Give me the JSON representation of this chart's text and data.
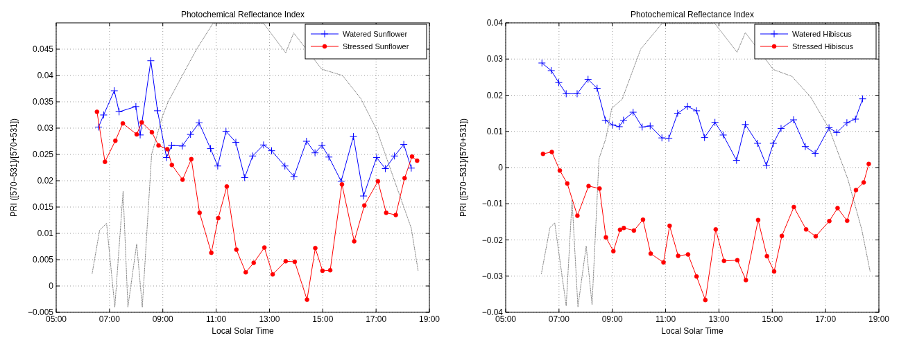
{
  "chart_data": [
    {
      "type": "line",
      "title": "Photochemical Reflectance Index",
      "xlabel": "Local Solar Time",
      "ylabel": "PRI ([570−531]/[570+531])",
      "xlim": [
        5,
        19
      ],
      "xticks": [
        {
          "value": 5,
          "label": "05:00"
        },
        {
          "value": 7,
          "label": "07:00"
        },
        {
          "value": 9,
          "label": "09:00"
        },
        {
          "value": 11,
          "label": "11:00"
        },
        {
          "value": 13,
          "label": "13:00"
        },
        {
          "value": 15,
          "label": "15:00"
        },
        {
          "value": 17,
          "label": "17:00"
        },
        {
          "value": 19,
          "label": "19:00"
        }
      ],
      "ylim": [
        -0.005,
        0.05
      ],
      "yticks": [
        -0.005,
        0,
        0.005,
        0.01,
        0.015,
        0.02,
        0.025,
        0.03,
        0.035,
        0.04,
        0.045
      ],
      "grid": true,
      "legend": "top right",
      "series": [
        {
          "color": "#808080",
          "line_style": "dotted",
          "marker": "none",
          "x": [
            6.35,
            6.63,
            6.89,
            7.2,
            7.51,
            7.69,
            8.02,
            8.23,
            8.58,
            8.97,
            9.2,
            9.84,
            10.27,
            10.88,
            12.78,
            13.61,
            13.91,
            14.96,
            15.74,
            16.43,
            17.03,
            17.72,
            18.32,
            18.58
          ],
          "values": [
            0.0024,
            0.0106,
            0.0119,
            -0.004,
            0.018,
            -0.004,
            0.008,
            -0.004,
            0.025,
            0.032,
            0.035,
            0.041,
            0.045,
            0.0499,
            0.0499,
            0.0443,
            0.0481,
            0.0412,
            0.04,
            0.0356,
            0.0296,
            0.0196,
            0.011,
            0.0028
          ]
        },
        {
          "name": "Watered Sunflower",
          "color": "#0000ff",
          "line_style": "solid",
          "marker": "cross",
          "x": [
            6.59,
            6.78,
            7.18,
            7.36,
            7.99,
            8.15,
            8.55,
            8.8,
            9.14,
            9.33,
            9.73,
            10.04,
            10.36,
            10.79,
            11.06,
            11.37,
            11.74,
            12.07,
            12.37,
            12.78,
            13.08,
            13.58,
            13.92,
            14.39,
            14.71,
            14.97,
            15.23,
            15.69,
            16.15,
            16.53,
            17.02,
            17.35,
            17.69,
            18.04,
            18.32
          ],
          "values": [
            0.0302,
            0.0325,
            0.0371,
            0.0331,
            0.0341,
            0.0287,
            0.0428,
            0.0333,
            0.0244,
            0.0267,
            0.0266,
            0.0288,
            0.031,
            0.0261,
            0.0228,
            0.0294,
            0.0273,
            0.0206,
            0.0247,
            0.0268,
            0.0257,
            0.0228,
            0.0208,
            0.0275,
            0.0253,
            0.0267,
            0.0245,
            0.0199,
            0.0284,
            0.0171,
            0.0244,
            0.0223,
            0.0247,
            0.0269,
            0.0224
          ]
        },
        {
          "name": "Stressed Sunflower",
          "color": "#ff0000",
          "line_style": "solid",
          "marker": "circle",
          "x": [
            6.53,
            6.83,
            7.22,
            7.5,
            8.02,
            8.21,
            8.59,
            8.84,
            9.17,
            9.34,
            9.74,
            10.07,
            10.38,
            10.82,
            11.08,
            11.4,
            11.76,
            12.11,
            12.41,
            12.81,
            13.12,
            13.61,
            13.95,
            14.41,
            14.72,
            14.99,
            15.28,
            15.72,
            16.18,
            16.56,
            17.07,
            17.38,
            17.74,
            18.07,
            18.35,
            18.54
          ],
          "values": [
            0.0331,
            0.0236,
            0.0276,
            0.0309,
            0.0288,
            0.0311,
            0.0292,
            0.0267,
            0.026,
            0.023,
            0.0202,
            0.0241,
            0.0139,
            0.0063,
            0.0129,
            0.0189,
            0.0069,
            0.0026,
            0.0044,
            0.0073,
            0.0022,
            0.0047,
            0.0046,
            -0.0026,
            0.0072,
            0.0029,
            0.003,
            0.0193,
            0.0085,
            0.0153,
            0.0199,
            0.0139,
            0.0135,
            0.0205,
            0.0246,
            0.0238
          ]
        }
      ]
    },
    {
      "type": "line",
      "title": "Photochemical Reflectance Index",
      "xlabel": "Local Solar Time",
      "ylabel": "PRI ([570−531]/[570+531])",
      "xlim": [
        5,
        19
      ],
      "xticks": [
        {
          "value": 5,
          "label": "05:00"
        },
        {
          "value": 7,
          "label": "07:00"
        },
        {
          "value": 9,
          "label": "09:00"
        },
        {
          "value": 11,
          "label": "11:00"
        },
        {
          "value": 13,
          "label": "13:00"
        },
        {
          "value": 15,
          "label": "15:00"
        },
        {
          "value": 17,
          "label": "17:00"
        },
        {
          "value": 19,
          "label": "19:00"
        }
      ],
      "ylim": [
        -0.04,
        0.04
      ],
      "yticks": [
        -0.04,
        -0.03,
        -0.02,
        -0.01,
        0,
        0.01,
        0.02,
        0.03,
        0.04
      ],
      "grid": true,
      "legend": "top right",
      "series": [
        {
          "color": "#808080",
          "line_style": "dotted",
          "marker": "none",
          "x": [
            6.34,
            6.66,
            6.84,
            7.27,
            7.49,
            7.71,
            8.02,
            8.24,
            8.5,
            8.76,
            8.98,
            9.37,
            9.72,
            10.07,
            10.86,
            12.85,
            13.68,
            13.99,
            15.04,
            15.74,
            16.44,
            17.14,
            17.84,
            18.36,
            18.67
          ],
          "values": [
            -0.0293,
            -0.0166,
            -0.0153,
            -0.0382,
            -0.009,
            -0.0385,
            -0.0217,
            -0.0379,
            0.0024,
            0.0081,
            0.0164,
            0.0189,
            0.0259,
            0.0328,
            0.0398,
            0.0398,
            0.0319,
            0.0373,
            0.0271,
            0.0252,
            0.0195,
            0.0107,
            -0.0033,
            -0.0172,
            -0.0287
          ]
        },
        {
          "name": "Watered Hibiscus",
          "color": "#0000ff",
          "line_style": "solid",
          "marker": "cross",
          "x": [
            6.36,
            6.71,
            6.99,
            7.27,
            7.68,
            8.09,
            8.43,
            8.74,
            9.01,
            9.26,
            9.42,
            9.78,
            10.12,
            10.42,
            10.86,
            11.12,
            11.45,
            11.82,
            12.16,
            12.46,
            12.85,
            13.16,
            13.66,
            13.99,
            14.45,
            14.78,
            15.04,
            15.33,
            15.8,
            16.24,
            16.61,
            17.13,
            17.42,
            17.8,
            18.12,
            18.39
          ],
          "values": [
            0.0289,
            0.0268,
            0.0235,
            0.0204,
            0.0204,
            0.0244,
            0.0219,
            0.0131,
            0.0118,
            0.0113,
            0.0131,
            0.0153,
            0.0112,
            0.0115,
            0.0082,
            0.0081,
            0.015,
            0.0169,
            0.0157,
            0.0083,
            0.0125,
            0.009,
            0.002,
            0.0119,
            0.0067,
            0.0006,
            0.0067,
            0.0108,
            0.0132,
            0.0058,
            0.0039,
            0.011,
            0.0097,
            0.0124,
            0.0134,
            0.019
          ]
        },
        {
          "name": "Stressed Hibiscus",
          "color": "#ff0000",
          "line_style": "solid",
          "marker": "circle",
          "x": [
            6.4,
            6.73,
            7.03,
            7.31,
            7.69,
            8.11,
            8.52,
            8.76,
            9.04,
            9.29,
            9.43,
            9.81,
            10.15,
            10.44,
            10.92,
            11.15,
            11.47,
            11.84,
            12.16,
            12.49,
            12.88,
            13.19,
            13.69,
            14.01,
            14.47,
            14.8,
            15.07,
            15.36,
            15.81,
            16.27,
            16.63,
            17.14,
            17.45,
            17.81,
            18.14,
            18.43,
            18.62
          ],
          "values": [
            0.0038,
            0.0043,
            -0.0008,
            -0.0044,
            -0.0133,
            -0.0051,
            -0.0058,
            -0.0193,
            -0.0231,
            -0.0172,
            -0.0167,
            -0.0174,
            -0.0144,
            -0.0238,
            -0.0262,
            -0.0161,
            -0.0244,
            -0.024,
            -0.0301,
            -0.0366,
            -0.0171,
            -0.0258,
            -0.0256,
            -0.0311,
            -0.0145,
            -0.0245,
            -0.0287,
            -0.0189,
            -0.0109,
            -0.0171,
            -0.019,
            -0.0148,
            -0.0112,
            -0.0147,
            -0.0062,
            -0.0041,
            0.001
          ]
        }
      ]
    }
  ]
}
